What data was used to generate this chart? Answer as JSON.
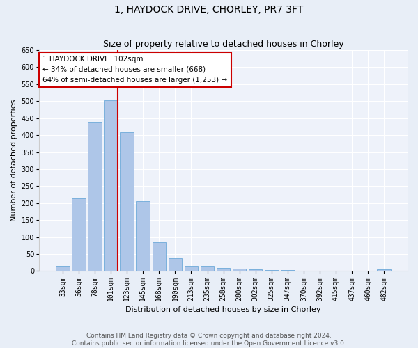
{
  "title": "1, HAYDOCK DRIVE, CHORLEY, PR7 3FT",
  "subtitle": "Size of property relative to detached houses in Chorley",
  "xlabel": "Distribution of detached houses by size in Chorley",
  "ylabel": "Number of detached properties",
  "categories": [
    "33sqm",
    "56sqm",
    "78sqm",
    "101sqm",
    "123sqm",
    "145sqm",
    "168sqm",
    "190sqm",
    "213sqm",
    "235sqm",
    "258sqm",
    "280sqm",
    "302sqm",
    "325sqm",
    "347sqm",
    "370sqm",
    "392sqm",
    "415sqm",
    "437sqm",
    "460sqm",
    "482sqm"
  ],
  "values": [
    15,
    213,
    438,
    502,
    408,
    205,
    85,
    38,
    15,
    15,
    10,
    8,
    5,
    3,
    2,
    1,
    1,
    0,
    0,
    0,
    5
  ],
  "bar_color": "#aec6e8",
  "bar_edge_color": "#5a9fd4",
  "vline_x_idx": 3,
  "vline_color": "#cc0000",
  "annotation_line1": "1 HAYDOCK DRIVE: 102sqm",
  "annotation_line2": "← 34% of detached houses are smaller (668)",
  "annotation_line3": "64% of semi-detached houses are larger (1,253) →",
  "annotation_box_color": "#ffffff",
  "annotation_box_edge_color": "#cc0000",
  "ylim": [
    0,
    650
  ],
  "yticks": [
    0,
    50,
    100,
    150,
    200,
    250,
    300,
    350,
    400,
    450,
    500,
    550,
    600,
    650
  ],
  "bg_color": "#e8eef7",
  "plot_bg_color": "#eef2fa",
  "footer": "Contains HM Land Registry data © Crown copyright and database right 2024.\nContains public sector information licensed under the Open Government Licence v3.0.",
  "title_fontsize": 10,
  "subtitle_fontsize": 9,
  "xlabel_fontsize": 8,
  "ylabel_fontsize": 8,
  "tick_fontsize": 7,
  "annotation_fontsize": 7.5,
  "footer_fontsize": 6.5
}
